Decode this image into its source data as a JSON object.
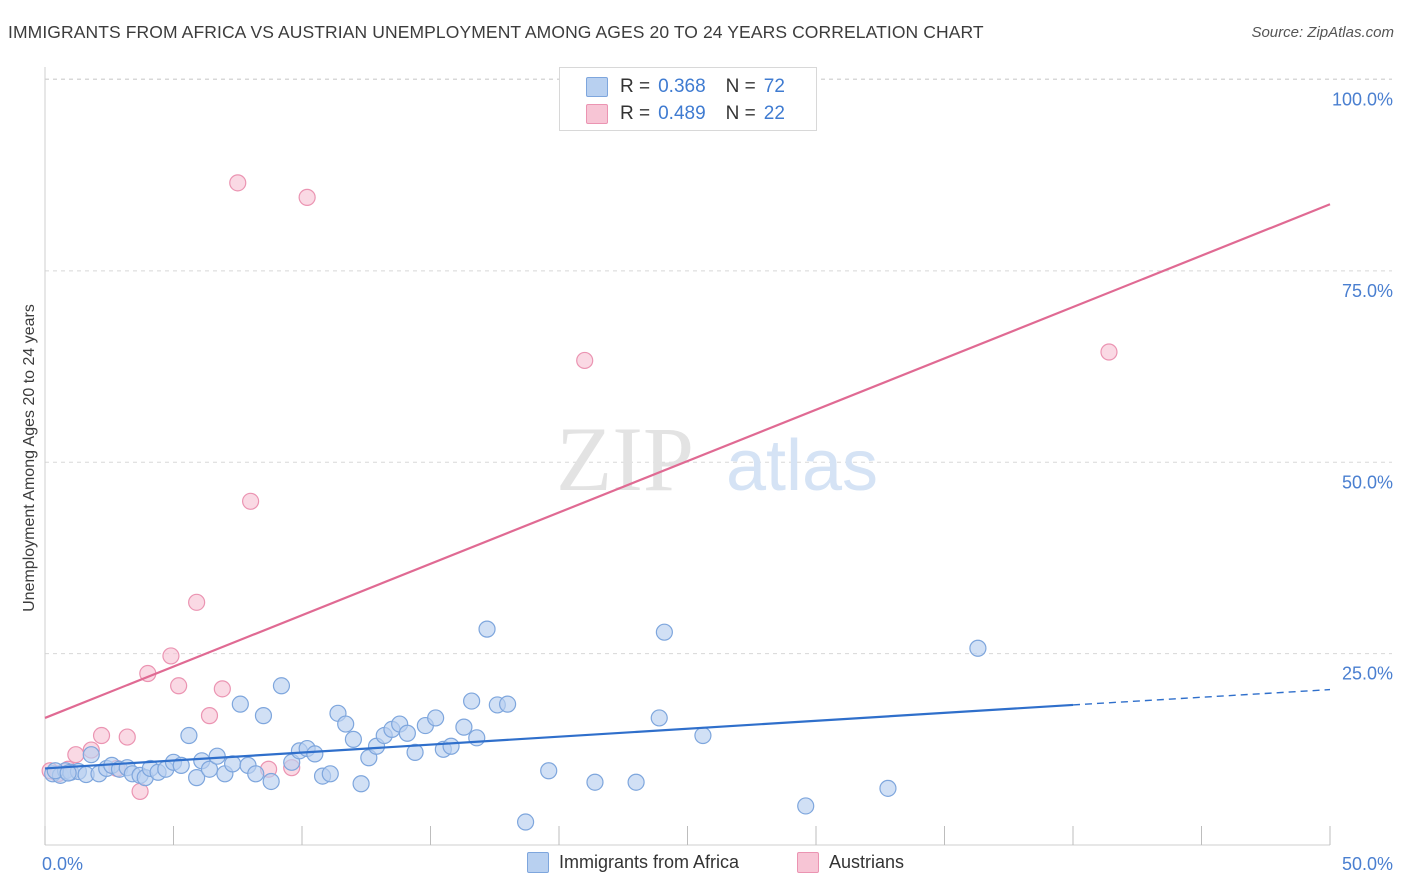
{
  "title": "IMMIGRANTS FROM AFRICA VS AUSTRIAN UNEMPLOYMENT AMONG AGES 20 TO 24 YEARS CORRELATION CHART",
  "source": "Source: ZipAtlas.com",
  "watermark": {
    "zip": "ZIP",
    "atlas": "atlas"
  },
  "legend": {
    "r_label": "R =",
    "n_label": "N =",
    "blue": {
      "r": "0.368",
      "n": "72"
    },
    "pink": {
      "r": "0.489",
      "n": "22"
    }
  },
  "colors": {
    "blue_fill": "#b8d0f0",
    "blue_stroke": "#7ea6dd",
    "blue_line": "#2f6fcb",
    "pink_fill": "#f7c5d5",
    "pink_stroke": "#eb94b2",
    "pink_line": "#e06a93",
    "axis_text": "#4a7fd0",
    "grid": "#d8d8d8"
  },
  "chart_data": {
    "type": "scatter",
    "title": "IMMIGRANTS FROM AFRICA VS AUSTRIAN UNEMPLOYMENT AMONG AGES 20 TO 24 YEARS CORRELATION CHART",
    "xlabel": "",
    "ylabel": "Unemployment Among Ages 20 to 24 years",
    "xlim": [
      0,
      50
    ],
    "ylim": [
      0,
      100
    ],
    "x_tick_labels": [
      "0.0%",
      "50.0%"
    ],
    "y_tick_labels": [
      "100.0%",
      "75.0%",
      "50.0%",
      "25.0%"
    ],
    "y_ticks": [
      100,
      75,
      50,
      25
    ],
    "series": [
      {
        "name": "Immigrants from Africa",
        "color": "blue",
        "points": [
          [
            0.3,
            9.3
          ],
          [
            0.6,
            9.1
          ],
          [
            0.8,
            9.7
          ],
          [
            1.0,
            9.5
          ],
          [
            1.3,
            9.6
          ],
          [
            1.6,
            9.2
          ],
          [
            1.8,
            11.8
          ],
          [
            2.1,
            9.3
          ],
          [
            2.4,
            10.0
          ],
          [
            2.6,
            10.4
          ],
          [
            2.9,
            9.9
          ],
          [
            3.2,
            10.1
          ],
          [
            3.4,
            9.3
          ],
          [
            3.7,
            9.1
          ],
          [
            3.9,
            8.8
          ],
          [
            4.1,
            10.0
          ],
          [
            4.4,
            9.5
          ],
          [
            4.7,
            9.9
          ],
          [
            5.0,
            10.8
          ],
          [
            5.3,
            10.4
          ],
          [
            5.6,
            14.3
          ],
          [
            5.9,
            8.8
          ],
          [
            6.1,
            11.0
          ],
          [
            6.4,
            9.9
          ],
          [
            6.7,
            11.6
          ],
          [
            7.0,
            9.3
          ],
          [
            7.3,
            10.6
          ],
          [
            7.6,
            18.4
          ],
          [
            7.9,
            10.4
          ],
          [
            8.2,
            9.3
          ],
          [
            8.5,
            16.9
          ],
          [
            8.8,
            8.3
          ],
          [
            9.2,
            20.8
          ],
          [
            9.6,
            10.8
          ],
          [
            9.9,
            12.3
          ],
          [
            10.2,
            12.6
          ],
          [
            10.5,
            11.9
          ],
          [
            10.8,
            9.0
          ],
          [
            11.1,
            9.3
          ],
          [
            11.4,
            17.2
          ],
          [
            11.7,
            15.8
          ],
          [
            12.0,
            13.8
          ],
          [
            12.3,
            8.0
          ],
          [
            12.6,
            11.4
          ],
          [
            12.9,
            12.9
          ],
          [
            13.2,
            14.3
          ],
          [
            13.5,
            15.1
          ],
          [
            13.8,
            15.8
          ],
          [
            14.1,
            14.6
          ],
          [
            14.4,
            12.1
          ],
          [
            14.8,
            15.6
          ],
          [
            15.2,
            16.6
          ],
          [
            15.5,
            12.5
          ],
          [
            15.8,
            12.9
          ],
          [
            16.3,
            15.4
          ],
          [
            16.6,
            18.8
          ],
          [
            16.8,
            14.0
          ],
          [
            17.2,
            28.2
          ],
          [
            17.6,
            18.3
          ],
          [
            18.0,
            18.4
          ],
          [
            18.7,
            3.0
          ],
          [
            19.6,
            9.7
          ],
          [
            21.4,
            8.2
          ],
          [
            23.0,
            8.2
          ],
          [
            23.9,
            16.6
          ],
          [
            24.1,
            27.8
          ],
          [
            25.6,
            14.3
          ],
          [
            29.6,
            5.1
          ],
          [
            32.8,
            7.4
          ],
          [
            36.3,
            25.7
          ],
          [
            0.4,
            9.7
          ],
          [
            0.9,
            9.4
          ]
        ]
      },
      {
        "name": "Austrians",
        "color": "pink",
        "points": [
          [
            0.2,
            9.7
          ],
          [
            0.5,
            9.3
          ],
          [
            0.9,
            9.9
          ],
          [
            1.2,
            11.8
          ],
          [
            1.8,
            12.4
          ],
          [
            2.2,
            14.3
          ],
          [
            2.8,
            10.0
          ],
          [
            3.2,
            14.1
          ],
          [
            3.7,
            7.0
          ],
          [
            4.0,
            22.4
          ],
          [
            4.9,
            24.7
          ],
          [
            5.2,
            20.8
          ],
          [
            5.9,
            31.7
          ],
          [
            6.4,
            16.9
          ],
          [
            6.9,
            20.4
          ],
          [
            7.5,
            86.5
          ],
          [
            8.0,
            44.9
          ],
          [
            8.7,
            9.9
          ],
          [
            9.6,
            10.1
          ],
          [
            10.2,
            84.6
          ],
          [
            21.0,
            63.3
          ],
          [
            41.4,
            64.4
          ]
        ]
      }
    ],
    "trend_lines": [
      {
        "name": "Immigrants from Africa",
        "x0": 0,
        "y0": 10.0,
        "x1": 40,
        "y1": 18.3,
        "dashed_to_x": 50,
        "dashed_to_y": 20.3
      },
      {
        "name": "Austrians",
        "x0": 0,
        "y0": 16.6,
        "x1": 50,
        "y1": 83.7
      }
    ],
    "legend_entries": [
      "Immigrants from Africa",
      "Austrians"
    ]
  }
}
